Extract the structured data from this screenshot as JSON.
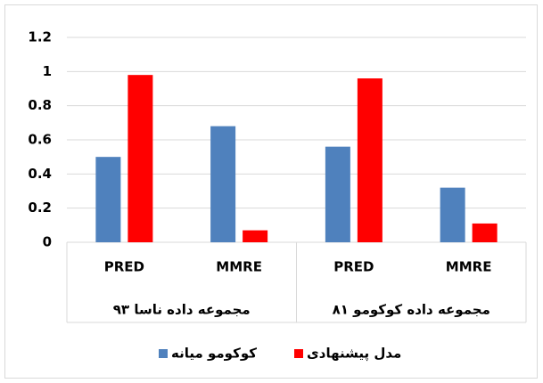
{
  "chart_data": {
    "type": "bar",
    "categories": [
      "PRED",
      "MMRE",
      "PRED",
      "MMRE"
    ],
    "groups": [
      "مجموعه داده ناسا ۹۳",
      "مجموعه داده کوکومو ۸۱"
    ],
    "series": [
      {
        "name": "کوکومو میانه",
        "color": "#4f81bd",
        "values": [
          0.5,
          0.68,
          0.56,
          0.32
        ]
      },
      {
        "name": "مدل پیشنهادی",
        "color": "#ff0000",
        "values": [
          0.98,
          0.07,
          0.96,
          0.11
        ]
      }
    ],
    "ylim": [
      0,
      1.2
    ],
    "yticks": [
      0,
      0.2,
      0.4,
      0.6,
      0.8,
      1,
      1.2
    ],
    "grid": true,
    "legend": "bottom"
  }
}
